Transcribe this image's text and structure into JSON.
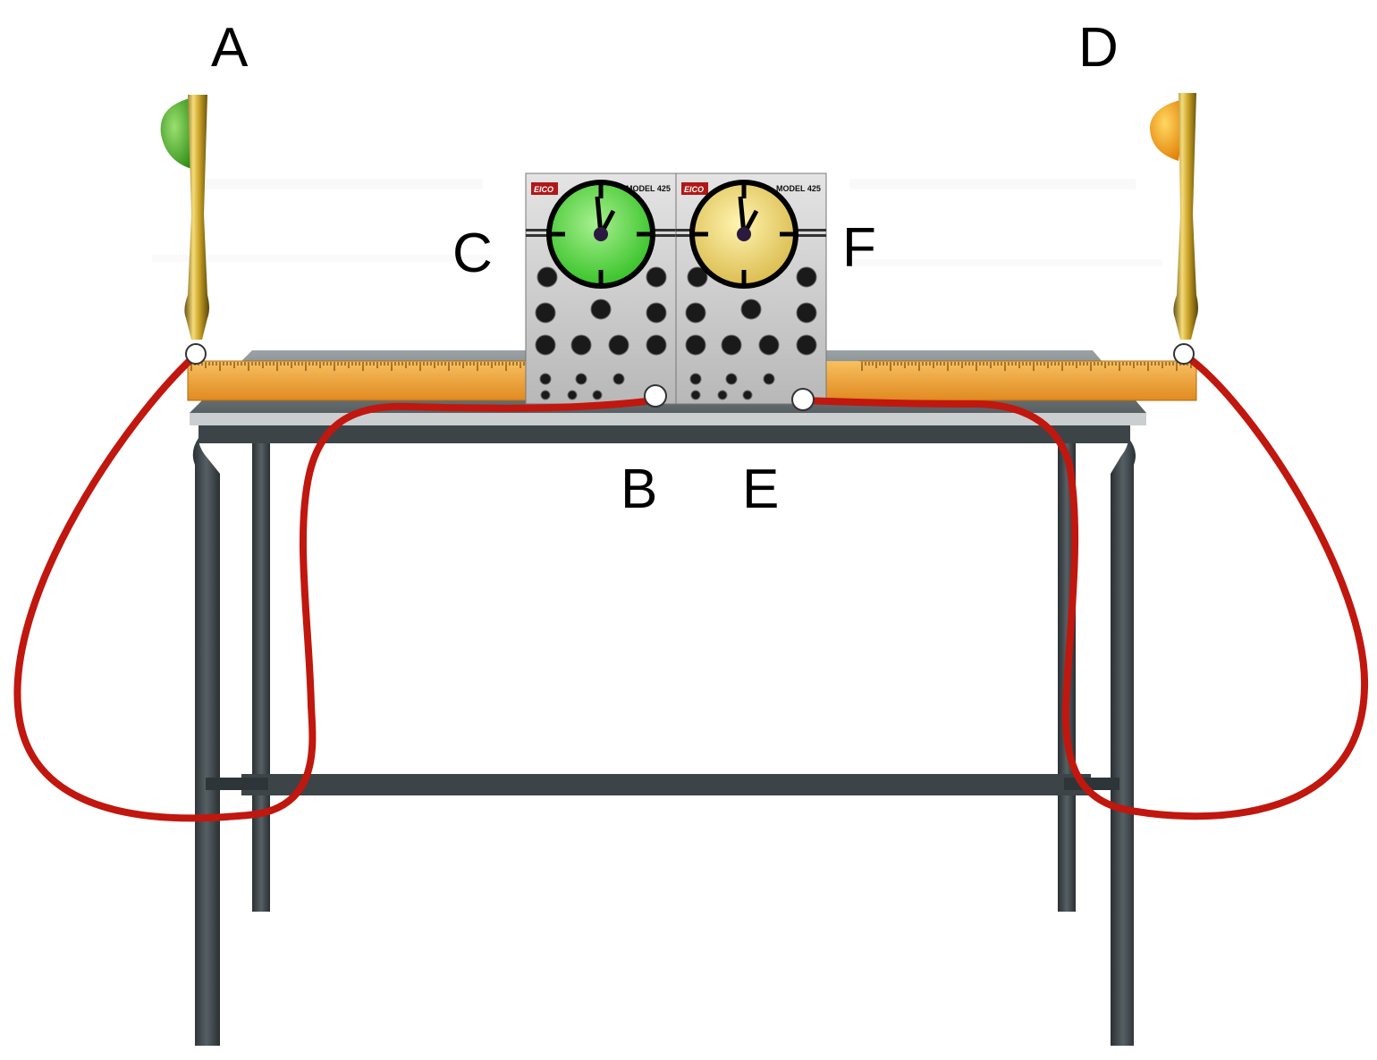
{
  "labels": {
    "a": "A",
    "b": "B",
    "c": "C",
    "d": "D",
    "e": "E",
    "f": "F"
  },
  "oscilloscope_left": {
    "brand": "EICO",
    "model": "MODEL 425",
    "clock_face_color": "#3fcf2f"
  },
  "oscilloscope_right": {
    "brand": "EICO",
    "model": "MODEL 425",
    "clock_face_color": "#e6cc60"
  },
  "colors": {
    "cable": "#c0170f",
    "ruler": "#f0a030",
    "table": "#3c4448",
    "left_bulb": "#4caf2a",
    "right_bulb": "#f5a010",
    "rod": "#c9a227"
  },
  "icons": {
    "left_lamp": "green-lamp-icon",
    "right_lamp": "orange-lamp-icon",
    "left_clock": "clock-icon",
    "right_clock": "clock-icon"
  }
}
